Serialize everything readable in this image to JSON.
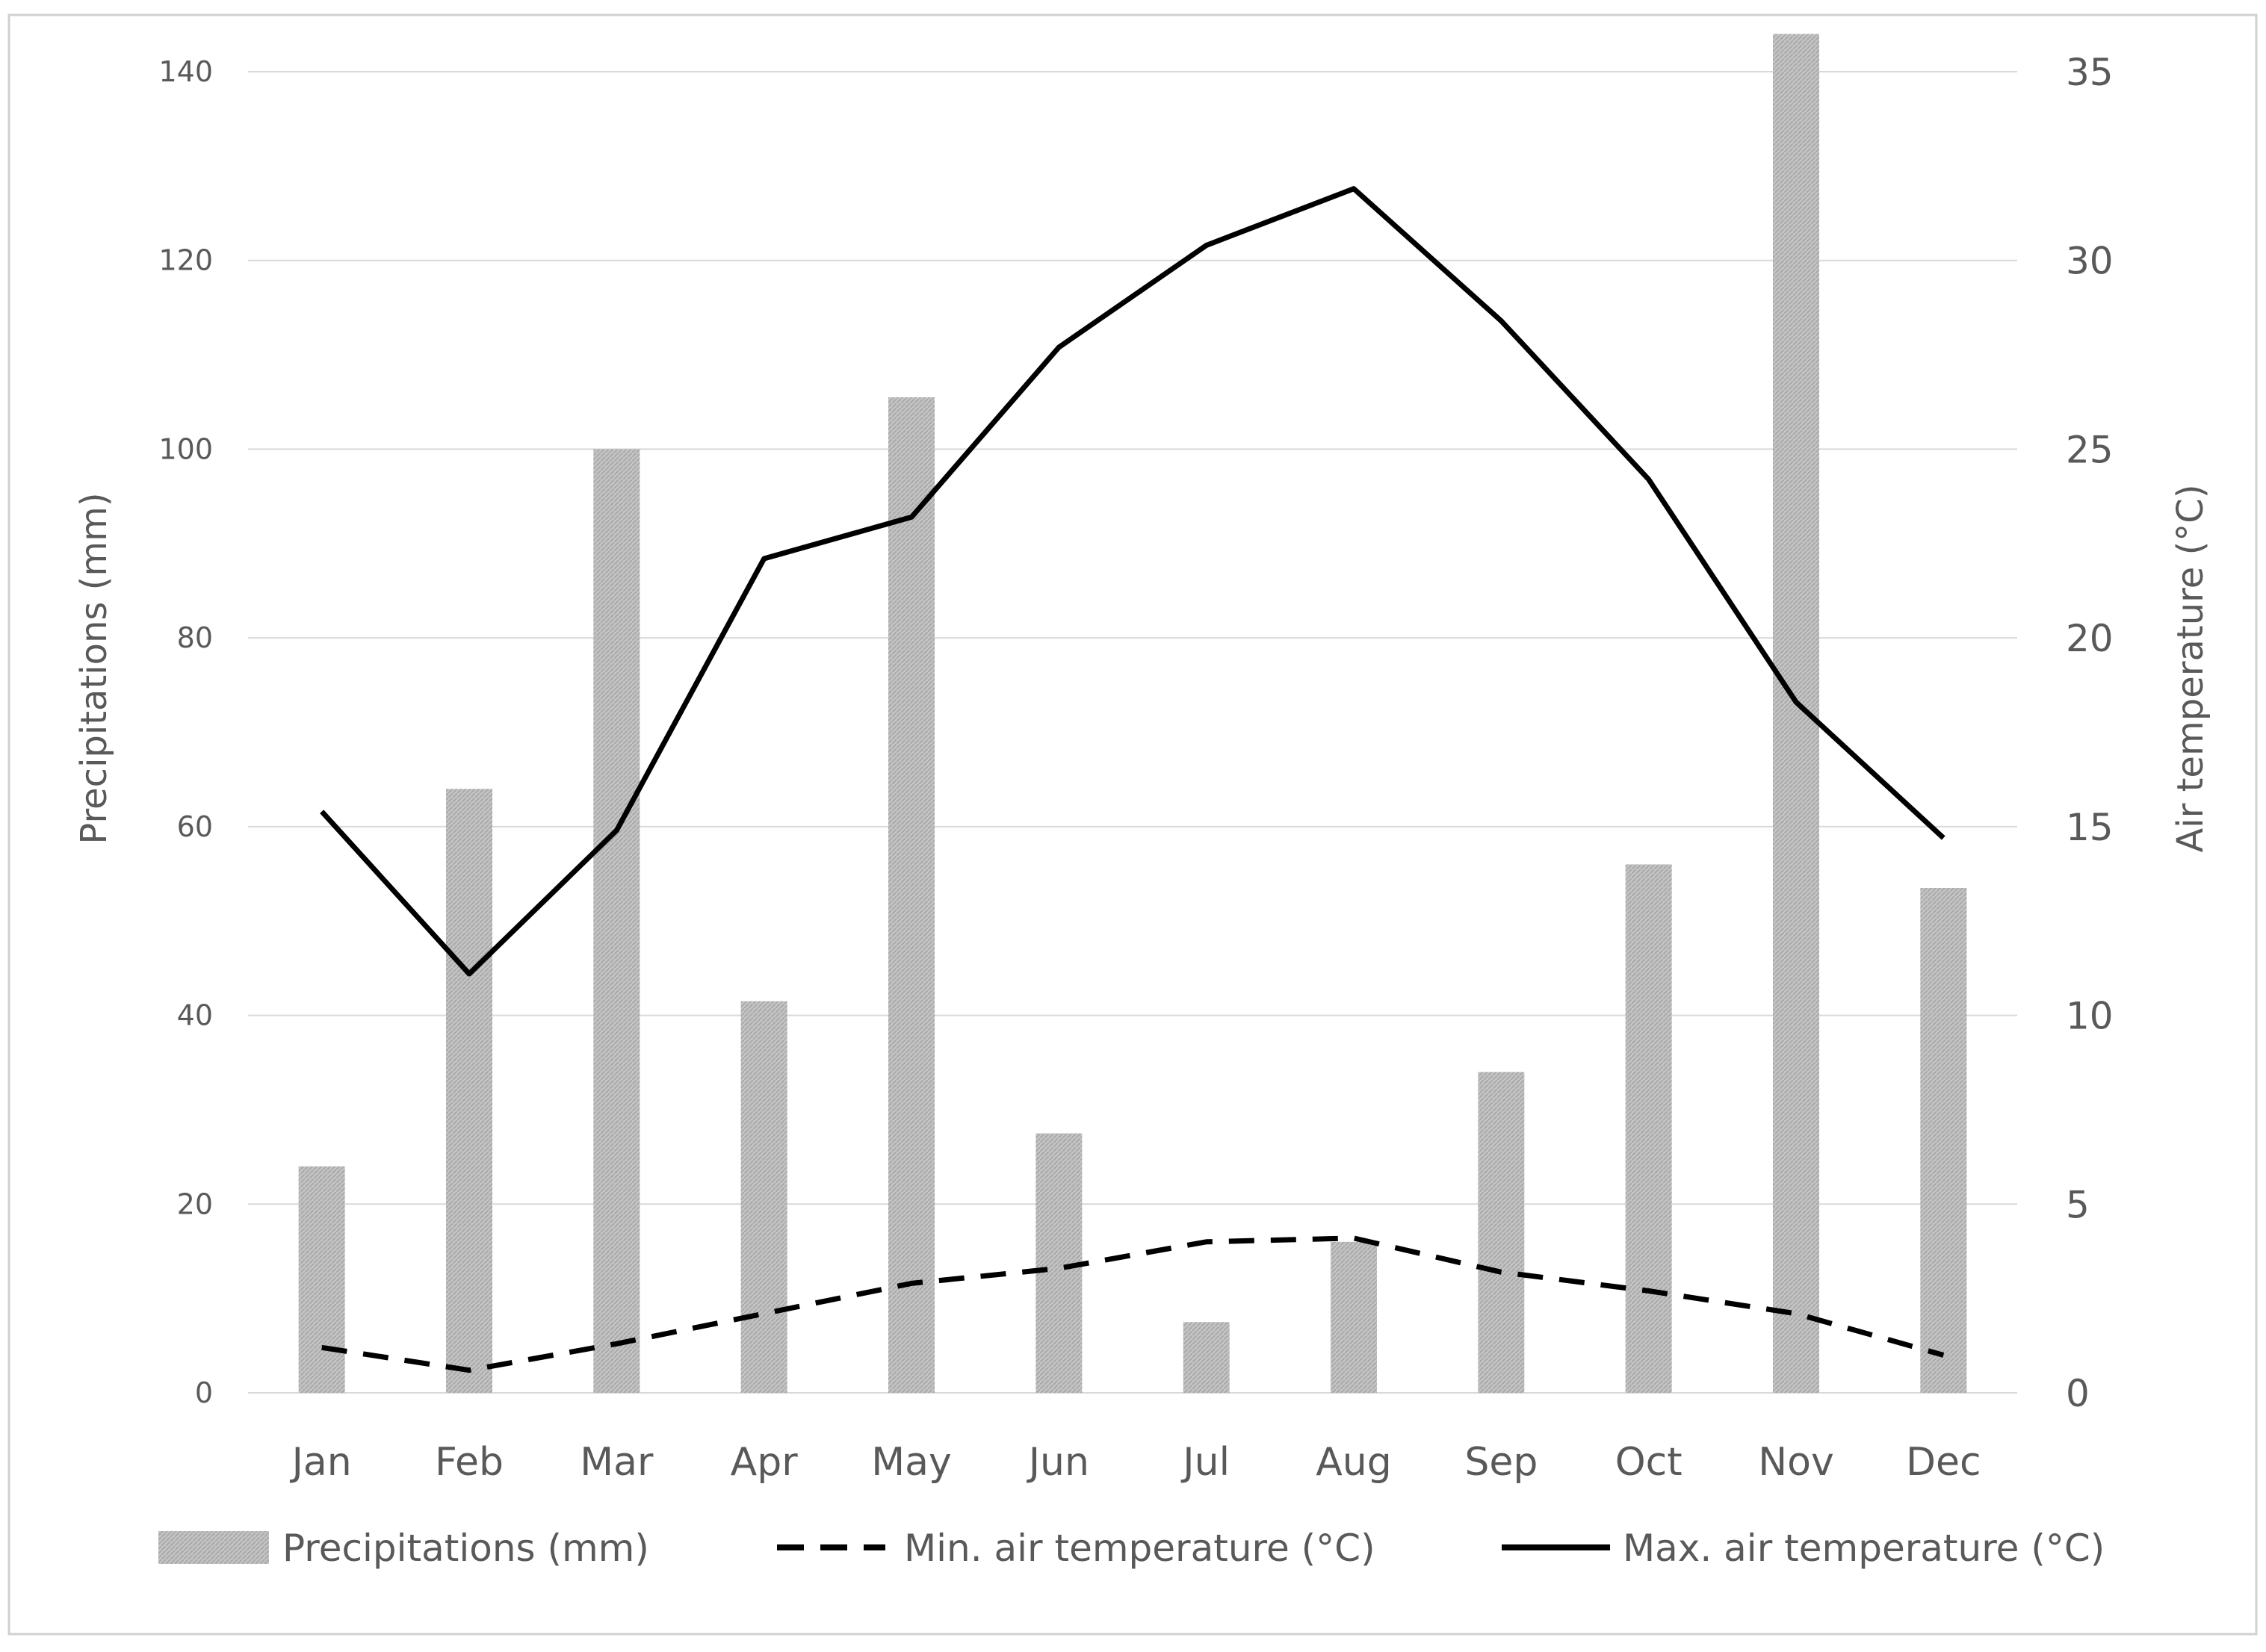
{
  "chart_data": {
    "type": "bar+line",
    "categories": [
      "Jan",
      "Feb",
      "Mar",
      "Apr",
      "May",
      "Jun",
      "Jul",
      "Aug",
      "Sep",
      "Oct",
      "Nov",
      "Dec"
    ],
    "series": [
      {
        "name": "Precipitations  (mm)",
        "type": "bar",
        "axis": "left",
        "values": [
          24,
          64,
          100,
          41.5,
          105.5,
          27.5,
          7.5,
          16,
          34,
          56,
          144,
          53.5
        ]
      },
      {
        "name": "Min. air temperature (°C)",
        "type": "line",
        "style": "dashed",
        "axis": "right",
        "values": [
          1.2,
          0.6,
          1.3,
          2.1,
          2.9,
          3.3,
          4.0,
          4.1,
          3.2,
          2.7,
          2.1,
          1.0
        ]
      },
      {
        "name": "Max. air temperature (°C)",
        "type": "line",
        "style": "solid",
        "axis": "right",
        "values": [
          15.4,
          11.1,
          14.9,
          22.1,
          23.2,
          27.7,
          30.4,
          31.9,
          28.4,
          24.2,
          18.3,
          14.7
        ]
      }
    ],
    "y_left": {
      "label": "Precipitations  (mm)",
      "min": 0,
      "max": 140,
      "ticks": [
        "0",
        "20",
        "40",
        "60",
        "80",
        "100",
        "120",
        "140"
      ]
    },
    "y_right": {
      "label": "Air temperature (°C)",
      "min": 0,
      "max": 35,
      "ticks": [
        "0",
        "5",
        "10",
        "15",
        "20",
        "25",
        "30",
        "35"
      ]
    },
    "grid": true,
    "legend_position": "bottom",
    "colors": {
      "bar": "#bfbfbf",
      "bar_hatch": "#a6a6a6",
      "lines": "#000000",
      "grid": "#d9d9d9",
      "text": "#595959",
      "frame": "#d0d0d0"
    }
  }
}
